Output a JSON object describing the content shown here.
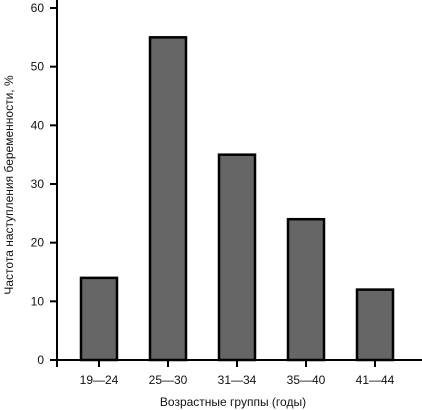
{
  "chart_data": {
    "type": "bar",
    "categories": [
      "19—24",
      "25—30",
      "31—34",
      "35—40",
      "41—44"
    ],
    "values": [
      14,
      55,
      35,
      24,
      12
    ],
    "xlabel": "Возрастные группы (годы)",
    "ylabel": "Частота наступления беременности, %",
    "ylim": [
      0,
      60
    ],
    "yticks": [
      0,
      10,
      20,
      30,
      40,
      50,
      60
    ],
    "grid": false,
    "legend": "none",
    "colors": {
      "bar_fill": "#666666",
      "bar_stroke": "#000000",
      "axis": "#000000"
    }
  }
}
